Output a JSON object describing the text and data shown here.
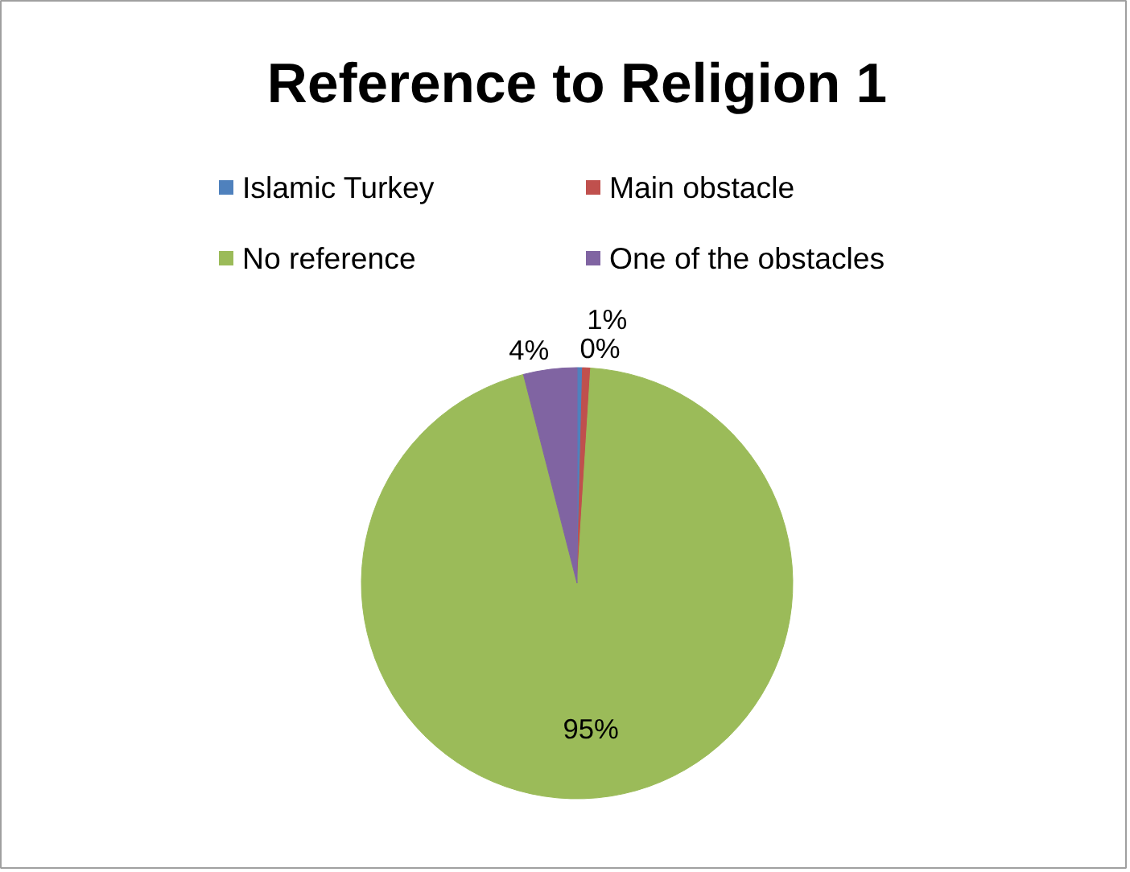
{
  "chart_data": {
    "type": "pie",
    "title": "Reference to Religion 1",
    "categories": [
      "Islamic Turkey",
      "Main obstacle",
      "No reference",
      "One of the obstacles"
    ],
    "values": [
      0.4,
      0.6,
      95,
      4
    ],
    "value_labels": [
      "0%",
      "1%",
      "95%",
      "4%"
    ],
    "colors": [
      "#4f81bd",
      "#c0504d",
      "#9bbb59",
      "#8064a2"
    ],
    "legend": "top"
  }
}
